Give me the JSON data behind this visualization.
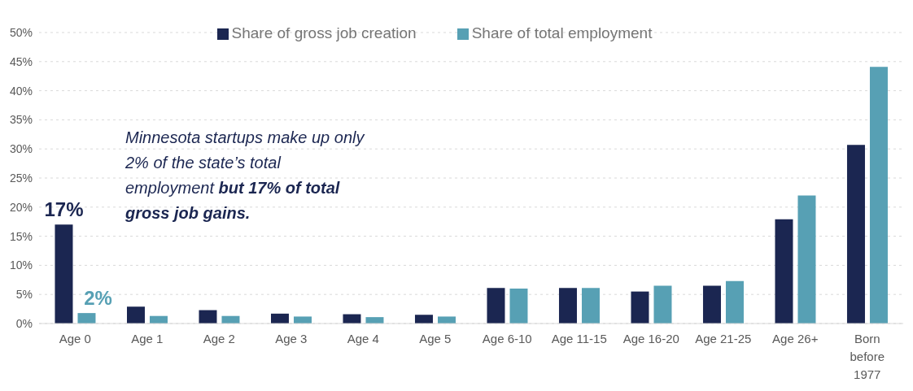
{
  "chart_data": {
    "type": "bar",
    "categories": [
      "Age 0",
      "Age 1",
      "Age 2",
      "Age 3",
      "Age 4",
      "Age 5",
      "Age 6-10",
      "Age 11-15",
      "Age 16-20",
      "Age 21-25",
      "Age 26+",
      "Born before 1977"
    ],
    "series": [
      {
        "name": "Share of gross job creation",
        "color": "#1b2651",
        "values": [
          17,
          2.9,
          2.3,
          1.7,
          1.6,
          1.5,
          6.1,
          6.1,
          5.5,
          6.5,
          17.9,
          30.7
        ],
        "value_labels": [
          "17%",
          null,
          null,
          null,
          null,
          null,
          null,
          null,
          null,
          null,
          null,
          null
        ]
      },
      {
        "name": "Share of total employment",
        "color": "#57a0b4",
        "values": [
          1.8,
          1.3,
          1.3,
          1.2,
          1.1,
          1.2,
          6.0,
          6.1,
          6.5,
          7.3,
          22.0,
          44.1
        ],
        "value_labels": [
          "2%",
          null,
          null,
          null,
          null,
          null,
          null,
          null,
          null,
          null,
          null,
          null
        ]
      }
    ],
    "ylim": [
      0,
      50
    ],
    "yticks": [
      {
        "value": 0,
        "label": "0%"
      },
      {
        "value": 5,
        "label": "5%"
      },
      {
        "value": 10,
        "label": "10%"
      },
      {
        "value": 15,
        "label": "15%"
      },
      {
        "value": 20,
        "label": "20%"
      },
      {
        "value": 25,
        "label": "25%"
      },
      {
        "value": 30,
        "label": "30%"
      },
      {
        "value": 35,
        "label": "35%"
      },
      {
        "value": 40,
        "label": "40%"
      },
      {
        "value": 45,
        "label": "45%"
      },
      {
        "value": 50,
        "label": "50%"
      }
    ],
    "grid": "y",
    "legend": "top",
    "annotations": [
      "Minnesota startups make up only 2% of the state’s total employment",
      "but 17% of total gross job gains."
    ]
  }
}
